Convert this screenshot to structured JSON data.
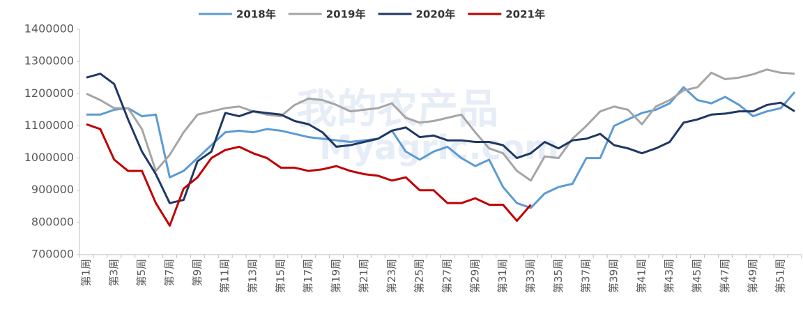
{
  "watermark": [
    "我的农产品",
    "Myagric.com"
  ],
  "chart_data": {
    "type": "line",
    "categories": [
      "第1周",
      null,
      "第3周",
      null,
      "第5周",
      null,
      "第7周",
      null,
      "第9周",
      null,
      "第11周",
      null,
      "第13周",
      null,
      "第15周",
      null,
      "第17周",
      null,
      "第19周",
      null,
      "第21周",
      null,
      "第23周",
      null,
      "第25周",
      null,
      "第27周",
      null,
      "第29周",
      null,
      "第31周",
      null,
      "第33周",
      null,
      "第35周",
      null,
      "第37周",
      null,
      "第39周",
      null,
      "第41周",
      null,
      "第43周",
      null,
      "第45周",
      null,
      "第47周",
      null,
      "第49周",
      null,
      "第51周",
      null
    ],
    "series": [
      {
        "name": "2018年",
        "color": "#5b9bd5",
        "values": [
          1135000,
          1135000,
          1150000,
          1155000,
          1130000,
          1135000,
          940000,
          960000,
          1000000,
          1040000,
          1080000,
          1085000,
          1080000,
          1090000,
          1085000,
          1075000,
          1065000,
          1060000,
          1055000,
          1050000,
          1055000,
          1060000,
          1085000,
          1020000,
          995000,
          1020000,
          1035000,
          1000000,
          975000,
          995000,
          910000,
          860000,
          845000,
          890000,
          910000,
          920000,
          1000000,
          1000000,
          1100000,
          1120000,
          1140000,
          1150000,
          1170000,
          1220000,
          1180000,
          1170000,
          1190000,
          1165000,
          1130000,
          1145000,
          1155000,
          1205000
        ]
      },
      {
        "name": "2019年",
        "color": "#a5a5a5",
        "values": [
          1200000,
          1180000,
          1155000,
          1155000,
          1090000,
          960000,
          1010000,
          1080000,
          1135000,
          1145000,
          1155000,
          1160000,
          1145000,
          1135000,
          1130000,
          1165000,
          1185000,
          1180000,
          1165000,
          1145000,
          1150000,
          1155000,
          1170000,
          1125000,
          1110000,
          1115000,
          1125000,
          1135000,
          1080000,
          1030000,
          1015000,
          960000,
          930000,
          1005000,
          1000000,
          1060000,
          1100000,
          1145000,
          1160000,
          1150000,
          1105000,
          1160000,
          1180000,
          1210000,
          1220000,
          1265000,
          1245000,
          1250000,
          1260000,
          1275000,
          1265000,
          1262000
        ]
      },
      {
        "name": "2020年",
        "color": "#1f3864",
        "values": [
          1250000,
          1262000,
          1230000,
          1120000,
          1020000,
          950000,
          860000,
          870000,
          990000,
          1020000,
          1140000,
          1130000,
          1145000,
          1140000,
          1135000,
          1115000,
          1105000,
          1080000,
          1035000,
          1040000,
          1050000,
          1060000,
          1085000,
          1095000,
          1065000,
          1070000,
          1055000,
          1055000,
          1050000,
          1050000,
          1040000,
          1000000,
          1015000,
          1050000,
          1030000,
          1055000,
          1060000,
          1075000,
          1040000,
          1030000,
          1015000,
          1030000,
          1050000,
          1110000,
          1120000,
          1135000,
          1138000,
          1145000,
          1145000,
          1165000,
          1172000,
          1145000
        ]
      },
      {
        "name": "2021年",
        "color": "#c00000",
        "values": [
          1105000,
          1090000,
          995000,
          960000,
          960000,
          860000,
          790000,
          905000,
          940000,
          1000000,
          1025000,
          1035000,
          1015000,
          1000000,
          970000,
          970000,
          960000,
          965000,
          975000,
          960000,
          950000,
          945000,
          930000,
          940000,
          900000,
          900000,
          860000,
          860000,
          875000,
          855000,
          855000,
          805000,
          855000,
          null,
          null,
          null,
          null,
          null,
          null,
          null,
          null,
          null,
          null,
          null,
          null,
          null,
          null,
          null,
          null,
          null,
          null,
          null
        ]
      }
    ],
    "ylim": [
      700000,
      1400000
    ],
    "yticks": [
      700000,
      800000,
      900000,
      1000000,
      1100000,
      1200000,
      1300000,
      1400000
    ],
    "legend": "top"
  }
}
